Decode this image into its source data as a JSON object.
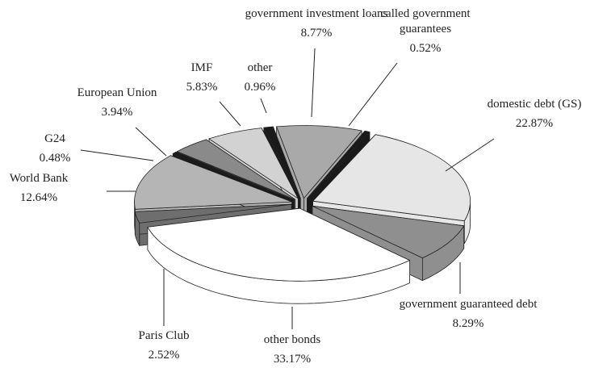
{
  "chart_data": {
    "type": "pie",
    "categories": [
      "government investment loans",
      "called government guarantees",
      "domestic debt (GS)",
      "government guaranteed debt",
      "other bonds",
      "Paris Club",
      "World Bank",
      "G24",
      "European Union",
      "IMF",
      "other"
    ],
    "values": [
      8.77,
      0.52,
      22.87,
      8.29,
      33.17,
      2.52,
      12.64,
      0.48,
      3.94,
      5.83,
      0.96
    ],
    "value_labels": [
      "8.77%",
      "0.52%",
      "22.87%",
      "8.29%",
      "33.17%",
      "2.52%",
      "12.64%",
      "0.48%",
      "3.94%",
      "5.83%",
      "0.96%"
    ],
    "colors": [
      "#a9a9a9",
      "#1a1a1a",
      "#e6e6e6",
      "#8f8f8f",
      "#ffffff",
      "#6e6e6e",
      "#b5b5b5",
      "#1a1a1a",
      "#8a8a8a",
      "#d2d2d2",
      "#1a1a1a"
    ]
  }
}
